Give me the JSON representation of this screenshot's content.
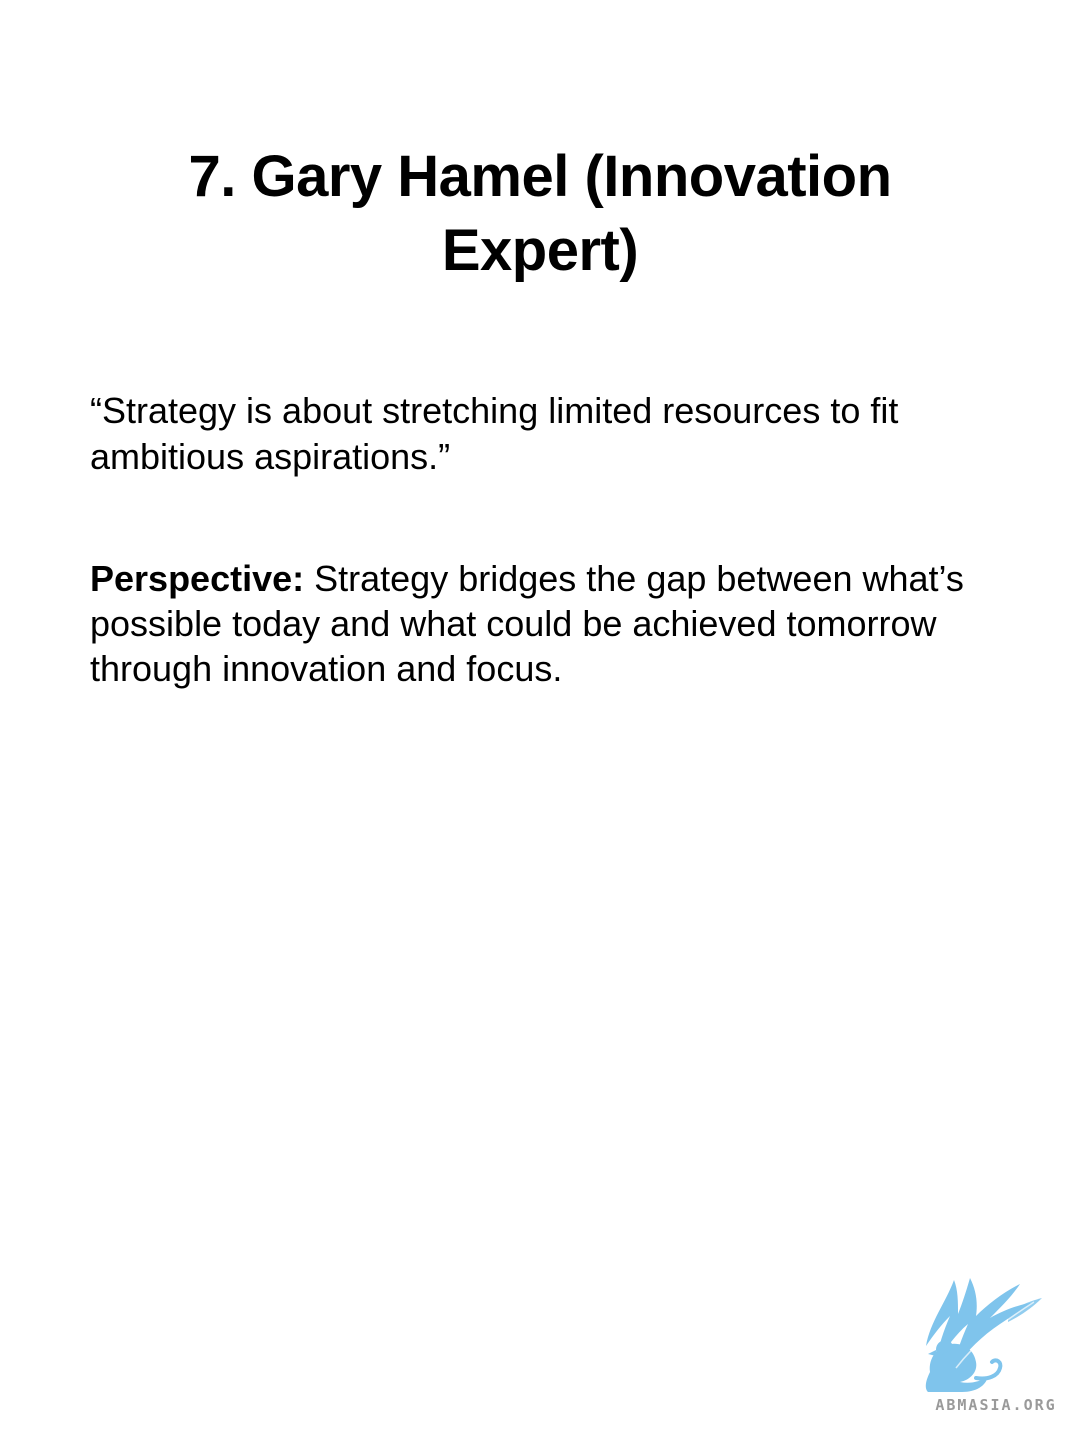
{
  "slide": {
    "title": "7. Gary Hamel (Innovation Expert)",
    "quote": "“Strategy is about stretching limited resources to fit ambitious aspirations.”",
    "perspective": {
      "label": "Perspective:",
      "text": " Strategy bridges the gap between what’s possible today and what could be achieved tomorrow through innovation and focus."
    }
  },
  "branding": {
    "logo_icon": "griffin-quill-logo",
    "logo_text": "ABMASIA.ORG",
    "logo_color": "#7fc4ec",
    "logo_text_color": "#9a9a9a"
  }
}
